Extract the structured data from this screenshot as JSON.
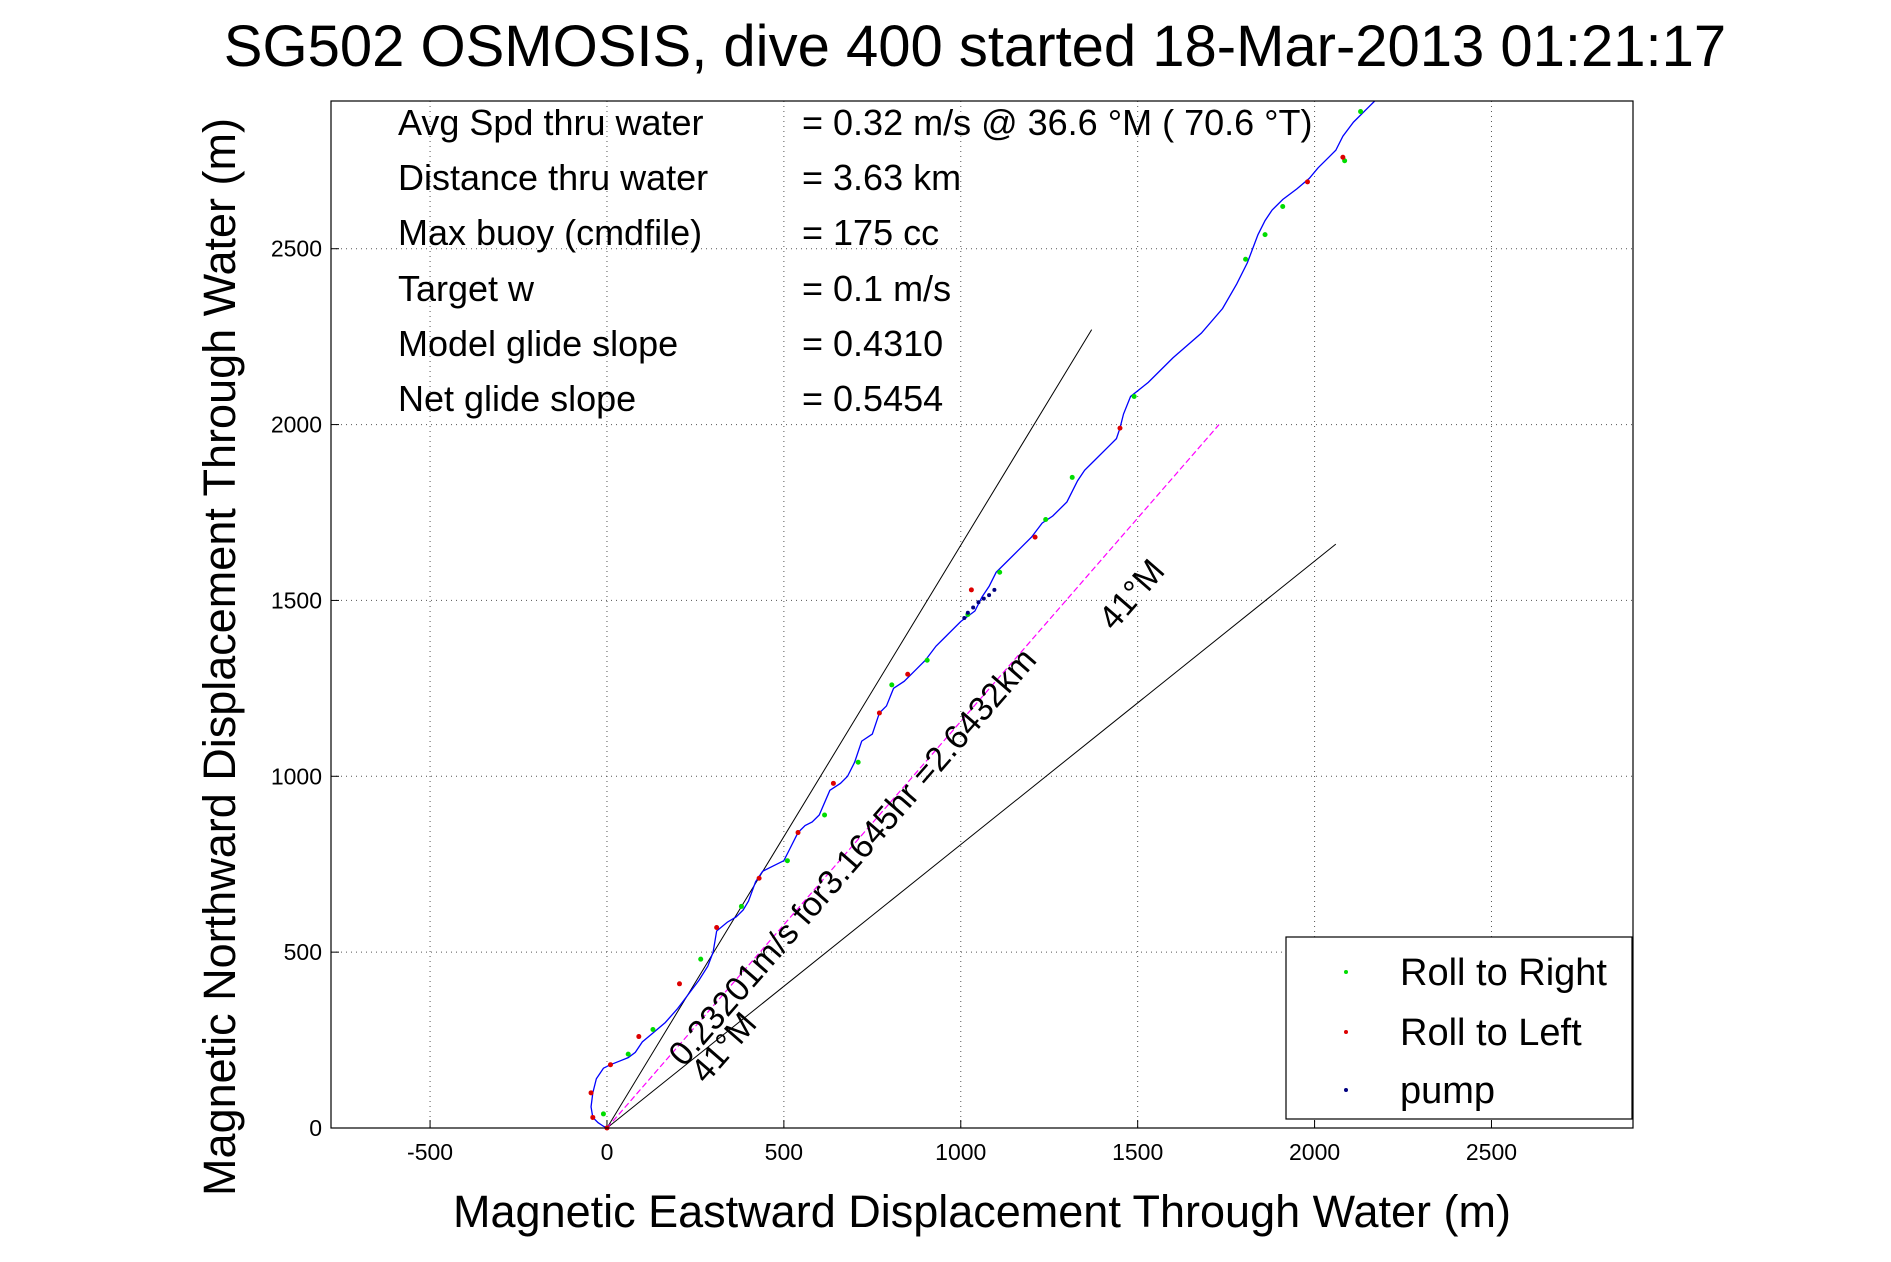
{
  "colors": {
    "track": "#0000ff",
    "roll_right": "#00dd00",
    "roll_left": "#dd0000",
    "pump": "#000080",
    "model_line": "#ff00ff",
    "axes": "#000000",
    "grid": "#555555"
  },
  "chart_data": {
    "type": "line",
    "title": "SG502 OSMOSIS, dive 400 started 18-Mar-2013 01:21:17",
    "xlabel": "Magnetic Eastward Displacement Through Water (m)",
    "ylabel": "Magnetic Northward Displacement Through Water (m)",
    "xlim": [
      -780,
      2900
    ],
    "ylim": [
      0,
      2920
    ],
    "xticks": [
      -500,
      0,
      500,
      1000,
      1500,
      2000,
      2500
    ],
    "yticks": [
      0,
      500,
      1000,
      1500,
      2000,
      2500
    ],
    "grid": true,
    "legend_position": "bottom-right",
    "stats": [
      {
        "label": "Avg Spd thru water",
        "value": "=  0.32 m/s @  36.6 °M ( 70.6 °T)"
      },
      {
        "label": "Distance thru water",
        "value": "=  3.63 km"
      },
      {
        "label": "Max buoy (cmdfile)",
        "value": "= 175 cc"
      },
      {
        "label": "Target w",
        "value": "= 0.1 m/s"
      },
      {
        "label": "Model glide slope",
        "value": "= 0.4310"
      },
      {
        "label": "Net glide slope",
        "value": "= 0.5454"
      }
    ],
    "annotations": {
      "model_line_label": "0.23201m/s for3.1645hr =2.6432km",
      "heading_label_lower": "41°M",
      "heading_label_upper": "41°M"
    },
    "reference_lines": [
      {
        "x": [
          0,
          1370
        ],
        "y": [
          0,
          2270
        ]
      },
      {
        "x": [
          0,
          2060
        ],
        "y": [
          0,
          1660
        ]
      }
    ],
    "model_line": {
      "x": [
        0,
        1730
      ],
      "y": [
        0,
        2000
      ]
    },
    "series": [
      {
        "name": "track",
        "x": [
          0,
          -10,
          -25,
          -40,
          -45,
          -40,
          -30,
          -10,
          10,
          35,
          60,
          80,
          100,
          130,
          165,
          200,
          230,
          260,
          285,
          300,
          310,
          340,
          365,
          385,
          400,
          420,
          440,
          470,
          500,
          520,
          540,
          560,
          580,
          600,
          630,
          660,
          680,
          700,
          720,
          750,
          770,
          790,
          810,
          840,
          870,
          900,
          930,
          960,
          1000,
          1040,
          1060,
          1080,
          1100,
          1130,
          1160,
          1200,
          1230,
          1260,
          1300,
          1330,
          1350,
          1380,
          1420,
          1440,
          1450,
          1460,
          1480,
          1530,
          1600,
          1680,
          1740,
          1780,
          1810,
          1840,
          1860,
          1880,
          1910,
          1950,
          1985,
          2010,
          2040,
          2060,
          2080,
          2110,
          2150,
          2170
        ],
        "y": [
          0,
          5,
          15,
          30,
          60,
          100,
          140,
          170,
          180,
          190,
          200,
          215,
          245,
          270,
          300,
          340,
          380,
          420,
          460,
          500,
          560,
          585,
          600,
          620,
          645,
          700,
          730,
          745,
          760,
          800,
          840,
          860,
          870,
          890,
          960,
          980,
          1000,
          1040,
          1100,
          1120,
          1180,
          1200,
          1250,
          1270,
          1300,
          1330,
          1370,
          1400,
          1440,
          1470,
          1510,
          1540,
          1580,
          1610,
          1640,
          1680,
          1720,
          1740,
          1780,
          1840,
          1870,
          1900,
          1940,
          1960,
          1990,
          2030,
          2080,
          2120,
          2190,
          2260,
          2330,
          2400,
          2460,
          2540,
          2580,
          2610,
          2640,
          2670,
          2700,
          2730,
          2760,
          2780,
          2820,
          2860,
          2900,
          2920
        ]
      },
      {
        "name": "Roll to Right",
        "x": [
          -10,
          60,
          130,
          265,
          380,
          510,
          615,
          710,
          805,
          905,
          1020,
          1110,
          1240,
          1315,
          1490,
          1805,
          1860,
          1910,
          2085,
          2130
        ],
        "y": [
          40,
          210,
          280,
          480,
          630,
          760,
          890,
          1040,
          1260,
          1330,
          1460,
          1580,
          1730,
          1850,
          2080,
          2470,
          2540,
          2620,
          2750,
          2890
        ]
      },
      {
        "name": "Roll to Left",
        "x": [
          -40,
          -45,
          0,
          10,
          90,
          205,
          310,
          430,
          540,
          640,
          770,
          850,
          1030,
          1210,
          1450,
          1980,
          2080
        ],
        "y": [
          30,
          100,
          0,
          180,
          260,
          410,
          570,
          710,
          840,
          980,
          1180,
          1290,
          1530,
          1680,
          1990,
          2690,
          2760
        ]
      },
      {
        "name": "pump",
        "x": [
          1010,
          1020,
          1035,
          1050,
          1065,
          1080,
          1095
        ],
        "y": [
          1450,
          1465,
          1480,
          1495,
          1505,
          1515,
          1530
        ]
      }
    ]
  }
}
